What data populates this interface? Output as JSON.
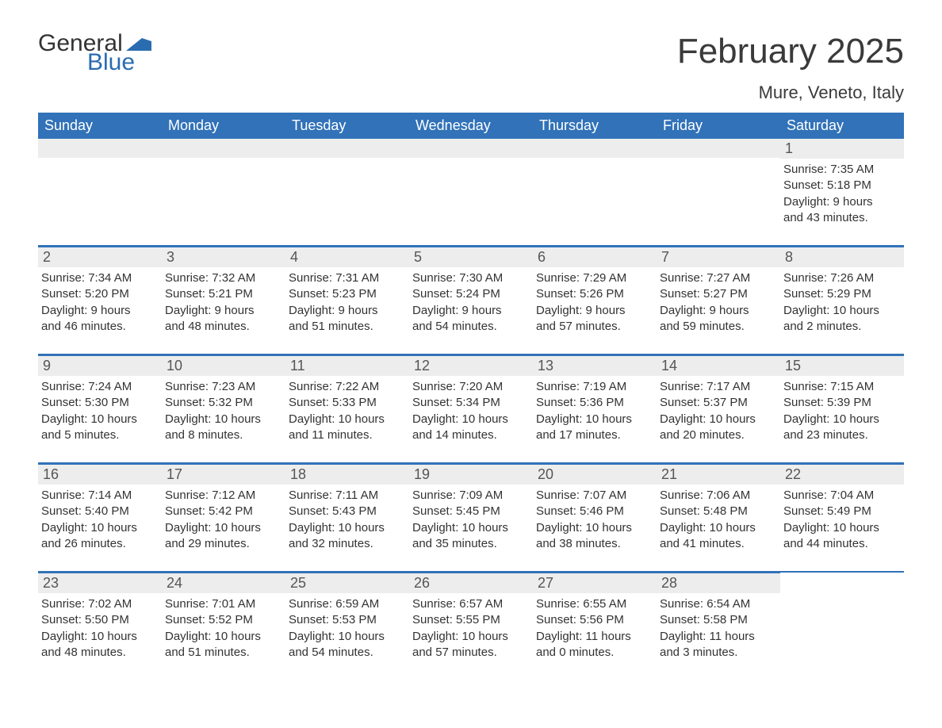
{
  "brand": {
    "textA": "General",
    "textB": "Blue",
    "flag_color": "#2a6cb0",
    "colorA": "#333333",
    "colorB": "#2a6cb0"
  },
  "title": "February 2025",
  "location": "Mure, Veneto, Italy",
  "colors": {
    "header_bg": "#3172b8",
    "header_text": "#ffffff",
    "rule": "#3172b8",
    "num_bg": "#ededed",
    "text": "#333333"
  },
  "days_of_week": [
    "Sunday",
    "Monday",
    "Tuesday",
    "Wednesday",
    "Thursday",
    "Friday",
    "Saturday"
  ],
  "weeks": [
    [
      null,
      null,
      null,
      null,
      null,
      null,
      {
        "n": "1",
        "sunrise": "Sunrise: 7:35 AM",
        "sunset": "Sunset: 5:18 PM",
        "dl1": "Daylight: 9 hours",
        "dl2": "and 43 minutes."
      }
    ],
    [
      {
        "n": "2",
        "sunrise": "Sunrise: 7:34 AM",
        "sunset": "Sunset: 5:20 PM",
        "dl1": "Daylight: 9 hours",
        "dl2": "and 46 minutes."
      },
      {
        "n": "3",
        "sunrise": "Sunrise: 7:32 AM",
        "sunset": "Sunset: 5:21 PM",
        "dl1": "Daylight: 9 hours",
        "dl2": "and 48 minutes."
      },
      {
        "n": "4",
        "sunrise": "Sunrise: 7:31 AM",
        "sunset": "Sunset: 5:23 PM",
        "dl1": "Daylight: 9 hours",
        "dl2": "and 51 minutes."
      },
      {
        "n": "5",
        "sunrise": "Sunrise: 7:30 AM",
        "sunset": "Sunset: 5:24 PM",
        "dl1": "Daylight: 9 hours",
        "dl2": "and 54 minutes."
      },
      {
        "n": "6",
        "sunrise": "Sunrise: 7:29 AM",
        "sunset": "Sunset: 5:26 PM",
        "dl1": "Daylight: 9 hours",
        "dl2": "and 57 minutes."
      },
      {
        "n": "7",
        "sunrise": "Sunrise: 7:27 AM",
        "sunset": "Sunset: 5:27 PM",
        "dl1": "Daylight: 9 hours",
        "dl2": "and 59 minutes."
      },
      {
        "n": "8",
        "sunrise": "Sunrise: 7:26 AM",
        "sunset": "Sunset: 5:29 PM",
        "dl1": "Daylight: 10 hours",
        "dl2": "and 2 minutes."
      }
    ],
    [
      {
        "n": "9",
        "sunrise": "Sunrise: 7:24 AM",
        "sunset": "Sunset: 5:30 PM",
        "dl1": "Daylight: 10 hours",
        "dl2": "and 5 minutes."
      },
      {
        "n": "10",
        "sunrise": "Sunrise: 7:23 AM",
        "sunset": "Sunset: 5:32 PM",
        "dl1": "Daylight: 10 hours",
        "dl2": "and 8 minutes."
      },
      {
        "n": "11",
        "sunrise": "Sunrise: 7:22 AM",
        "sunset": "Sunset: 5:33 PM",
        "dl1": "Daylight: 10 hours",
        "dl2": "and 11 minutes."
      },
      {
        "n": "12",
        "sunrise": "Sunrise: 7:20 AM",
        "sunset": "Sunset: 5:34 PM",
        "dl1": "Daylight: 10 hours",
        "dl2": "and 14 minutes."
      },
      {
        "n": "13",
        "sunrise": "Sunrise: 7:19 AM",
        "sunset": "Sunset: 5:36 PM",
        "dl1": "Daylight: 10 hours",
        "dl2": "and 17 minutes."
      },
      {
        "n": "14",
        "sunrise": "Sunrise: 7:17 AM",
        "sunset": "Sunset: 5:37 PM",
        "dl1": "Daylight: 10 hours",
        "dl2": "and 20 minutes."
      },
      {
        "n": "15",
        "sunrise": "Sunrise: 7:15 AM",
        "sunset": "Sunset: 5:39 PM",
        "dl1": "Daylight: 10 hours",
        "dl2": "and 23 minutes."
      }
    ],
    [
      {
        "n": "16",
        "sunrise": "Sunrise: 7:14 AM",
        "sunset": "Sunset: 5:40 PM",
        "dl1": "Daylight: 10 hours",
        "dl2": "and 26 minutes."
      },
      {
        "n": "17",
        "sunrise": "Sunrise: 7:12 AM",
        "sunset": "Sunset: 5:42 PM",
        "dl1": "Daylight: 10 hours",
        "dl2": "and 29 minutes."
      },
      {
        "n": "18",
        "sunrise": "Sunrise: 7:11 AM",
        "sunset": "Sunset: 5:43 PM",
        "dl1": "Daylight: 10 hours",
        "dl2": "and 32 minutes."
      },
      {
        "n": "19",
        "sunrise": "Sunrise: 7:09 AM",
        "sunset": "Sunset: 5:45 PM",
        "dl1": "Daylight: 10 hours",
        "dl2": "and 35 minutes."
      },
      {
        "n": "20",
        "sunrise": "Sunrise: 7:07 AM",
        "sunset": "Sunset: 5:46 PM",
        "dl1": "Daylight: 10 hours",
        "dl2": "and 38 minutes."
      },
      {
        "n": "21",
        "sunrise": "Sunrise: 7:06 AM",
        "sunset": "Sunset: 5:48 PM",
        "dl1": "Daylight: 10 hours",
        "dl2": "and 41 minutes."
      },
      {
        "n": "22",
        "sunrise": "Sunrise: 7:04 AM",
        "sunset": "Sunset: 5:49 PM",
        "dl1": "Daylight: 10 hours",
        "dl2": "and 44 minutes."
      }
    ],
    [
      {
        "n": "23",
        "sunrise": "Sunrise: 7:02 AM",
        "sunset": "Sunset: 5:50 PM",
        "dl1": "Daylight: 10 hours",
        "dl2": "and 48 minutes."
      },
      {
        "n": "24",
        "sunrise": "Sunrise: 7:01 AM",
        "sunset": "Sunset: 5:52 PM",
        "dl1": "Daylight: 10 hours",
        "dl2": "and 51 minutes."
      },
      {
        "n": "25",
        "sunrise": "Sunrise: 6:59 AM",
        "sunset": "Sunset: 5:53 PM",
        "dl1": "Daylight: 10 hours",
        "dl2": "and 54 minutes."
      },
      {
        "n": "26",
        "sunrise": "Sunrise: 6:57 AM",
        "sunset": "Sunset: 5:55 PM",
        "dl1": "Daylight: 10 hours",
        "dl2": "and 57 minutes."
      },
      {
        "n": "27",
        "sunrise": "Sunrise: 6:55 AM",
        "sunset": "Sunset: 5:56 PM",
        "dl1": "Daylight: 11 hours",
        "dl2": "and 0 minutes."
      },
      {
        "n": "28",
        "sunrise": "Sunrise: 6:54 AM",
        "sunset": "Sunset: 5:58 PM",
        "dl1": "Daylight: 11 hours",
        "dl2": "and 3 minutes."
      },
      null
    ]
  ]
}
